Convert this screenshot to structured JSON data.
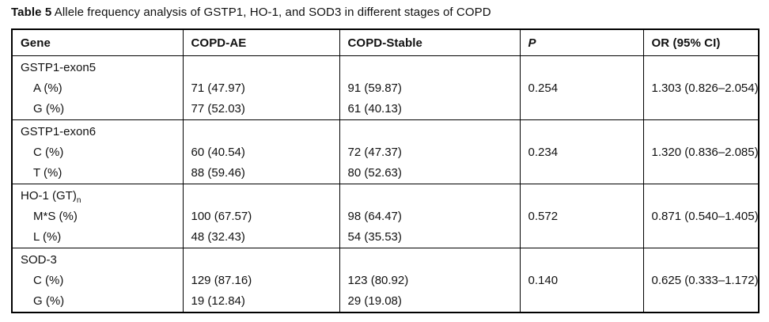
{
  "caption": {
    "label": "Table 5",
    "text": " Allele frequency analysis of GSTP1, HO-1, and SOD3 in different stages of COPD"
  },
  "table": {
    "columns": [
      "Gene",
      "COPD-AE",
      "COPD-Stable",
      "P",
      "OR (95% CI)"
    ],
    "groups": [
      {
        "gene": "GSTP1-exon5",
        "gene_sub": "",
        "rows": [
          {
            "allele": "A (%)",
            "copd_ae": "71 (47.97)",
            "copd_stable": "91 (59.87)"
          },
          {
            "allele": "G (%)",
            "copd_ae": "77 (52.03)",
            "copd_stable": "61 (40.13)"
          }
        ],
        "p": "0.254",
        "or": "1.303 (0.826–2.054)"
      },
      {
        "gene": "GSTP1-exon6",
        "gene_sub": "",
        "rows": [
          {
            "allele": "C (%)",
            "copd_ae": "60 (40.54)",
            "copd_stable": "72 (47.37)"
          },
          {
            "allele": "T (%)",
            "copd_ae": "88 (59.46)",
            "copd_stable": "80 (52.63)"
          }
        ],
        "p": "0.234",
        "or": "1.320 (0.836–2.085)"
      },
      {
        "gene": "HO-1 (GT)",
        "gene_sub": "n",
        "rows": [
          {
            "allele": "M*S (%)",
            "copd_ae": "100 (67.57)",
            "copd_stable": "98 (64.47)"
          },
          {
            "allele": "L (%)",
            "copd_ae": "48 (32.43)",
            "copd_stable": "54 (35.53)"
          }
        ],
        "p": "0.572",
        "or": "0.871 (0.540–1.405)"
      },
      {
        "gene": "SOD-3",
        "gene_sub": "",
        "rows": [
          {
            "allele": "C (%)",
            "copd_ae": "129 (87.16)",
            "copd_stable": "123 (80.92)"
          },
          {
            "allele": "G (%)",
            "copd_ae": "19 (12.84)",
            "copd_stable": "29 (19.08)"
          }
        ],
        "p": "0.140",
        "or": "0.625 (0.333–1.172)"
      }
    ]
  }
}
